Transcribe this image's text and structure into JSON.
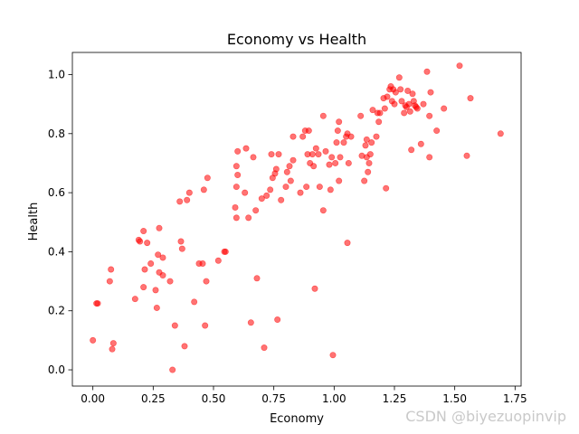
{
  "chart_data": {
    "type": "scatter",
    "title": "Economy vs Health",
    "xlabel": "Economy",
    "ylabel": "Health",
    "xlim": [
      -0.085,
      1.775
    ],
    "ylim": [
      -0.055,
      1.075
    ],
    "xticks": [
      0.0,
      0.25,
      0.5,
      0.75,
      1.0,
      1.25,
      1.5,
      1.75
    ],
    "xtick_labels": [
      "0.00",
      "0.25",
      "0.50",
      "0.75",
      "1.00",
      "1.25",
      "1.50",
      "1.75"
    ],
    "yticks": [
      0.0,
      0.2,
      0.4,
      0.6,
      0.8,
      1.0
    ],
    "ytick_labels": [
      "0.0",
      "0.2",
      "0.4",
      "0.6",
      "0.8",
      "1.0"
    ],
    "grid": false,
    "legend": "none",
    "marker_color": "#ff0000",
    "marker_alpha": 0.55,
    "points": [
      [
        0.0,
        0.1
      ],
      [
        0.015,
        0.225
      ],
      [
        0.02,
        0.225
      ],
      [
        0.07,
        0.3
      ],
      [
        0.075,
        0.34
      ],
      [
        0.08,
        0.07
      ],
      [
        0.085,
        0.09
      ],
      [
        0.175,
        0.24
      ],
      [
        0.19,
        0.44
      ],
      [
        0.195,
        0.435
      ],
      [
        0.21,
        0.47
      ],
      [
        0.21,
        0.28
      ],
      [
        0.215,
        0.34
      ],
      [
        0.225,
        0.43
      ],
      [
        0.24,
        0.36
      ],
      [
        0.26,
        0.27
      ],
      [
        0.265,
        0.21
      ],
      [
        0.27,
        0.39
      ],
      [
        0.275,
        0.48
      ],
      [
        0.275,
        0.33
      ],
      [
        0.29,
        0.38
      ],
      [
        0.29,
        0.32
      ],
      [
        0.32,
        0.3
      ],
      [
        0.33,
        0.0
      ],
      [
        0.34,
        0.15
      ],
      [
        0.36,
        0.57
      ],
      [
        0.365,
        0.435
      ],
      [
        0.37,
        0.41
      ],
      [
        0.38,
        0.08
      ],
      [
        0.39,
        0.575
      ],
      [
        0.4,
        0.6
      ],
      [
        0.42,
        0.23
      ],
      [
        0.44,
        0.36
      ],
      [
        0.455,
        0.36
      ],
      [
        0.46,
        0.61
      ],
      [
        0.465,
        0.15
      ],
      [
        0.47,
        0.3
      ],
      [
        0.475,
        0.65
      ],
      [
        0.52,
        0.37
      ],
      [
        0.545,
        0.4
      ],
      [
        0.55,
        0.4
      ],
      [
        0.59,
        0.55
      ],
      [
        0.595,
        0.515
      ],
      [
        0.595,
        0.62
      ],
      [
        0.595,
        0.69
      ],
      [
        0.6,
        0.74
      ],
      [
        0.6,
        0.66
      ],
      [
        0.63,
        0.6
      ],
      [
        0.635,
        0.75
      ],
      [
        0.645,
        0.515
      ],
      [
        0.655,
        0.16
      ],
      [
        0.665,
        0.72
      ],
      [
        0.675,
        0.54
      ],
      [
        0.68,
        0.31
      ],
      [
        0.7,
        0.58
      ],
      [
        0.71,
        0.075
      ],
      [
        0.72,
        0.59
      ],
      [
        0.735,
        0.61
      ],
      [
        0.74,
        0.73
      ],
      [
        0.745,
        0.65
      ],
      [
        0.755,
        0.665
      ],
      [
        0.76,
        0.68
      ],
      [
        0.765,
        0.17
      ],
      [
        0.77,
        0.73
      ],
      [
        0.78,
        0.575
      ],
      [
        0.8,
        0.62
      ],
      [
        0.805,
        0.67
      ],
      [
        0.815,
        0.69
      ],
      [
        0.82,
        0.64
      ],
      [
        0.83,
        0.71
      ],
      [
        0.83,
        0.79
      ],
      [
        0.86,
        0.6
      ],
      [
        0.87,
        0.79
      ],
      [
        0.88,
        0.81
      ],
      [
        0.885,
        0.62
      ],
      [
        0.89,
        0.73
      ],
      [
        0.895,
        0.81
      ],
      [
        0.9,
        0.7
      ],
      [
        0.91,
        0.73
      ],
      [
        0.915,
        0.69
      ],
      [
        0.92,
        0.275
      ],
      [
        0.925,
        0.75
      ],
      [
        0.935,
        0.73
      ],
      [
        0.94,
        0.62
      ],
      [
        0.955,
        0.54
      ],
      [
        0.955,
        0.86
      ],
      [
        0.965,
        0.74
      ],
      [
        0.98,
        0.695
      ],
      [
        0.985,
        0.61
      ],
      [
        0.99,
        0.72
      ],
      [
        0.995,
        0.05
      ],
      [
        1.005,
        0.7
      ],
      [
        1.01,
        0.77
      ],
      [
        1.015,
        0.81
      ],
      [
        1.02,
        0.64
      ],
      [
        1.02,
        0.84
      ],
      [
        1.025,
        0.72
      ],
      [
        1.04,
        0.77
      ],
      [
        1.05,
        0.79
      ],
      [
        1.055,
        0.43
      ],
      [
        1.055,
        0.8
      ],
      [
        1.06,
        0.7
      ],
      [
        1.07,
        0.79
      ],
      [
        1.11,
        0.86
      ],
      [
        1.115,
        0.725
      ],
      [
        1.125,
        0.64
      ],
      [
        1.13,
        0.76
      ],
      [
        1.135,
        0.78
      ],
      [
        1.135,
        0.72
      ],
      [
        1.14,
        0.67
      ],
      [
        1.145,
        0.7
      ],
      [
        1.15,
        0.73
      ],
      [
        1.155,
        0.77
      ],
      [
        1.16,
        0.88
      ],
      [
        1.175,
        0.79
      ],
      [
        1.18,
        0.87
      ],
      [
        1.185,
        0.84
      ],
      [
        1.19,
        0.87
      ],
      [
        1.205,
        0.92
      ],
      [
        1.21,
        0.885
      ],
      [
        1.215,
        0.615
      ],
      [
        1.22,
        0.925
      ],
      [
        1.23,
        0.95
      ],
      [
        1.235,
        0.96
      ],
      [
        1.24,
        0.91
      ],
      [
        1.245,
        0.95
      ],
      [
        1.25,
        0.9
      ],
      [
        1.255,
        0.94
      ],
      [
        1.27,
        0.99
      ],
      [
        1.275,
        0.95
      ],
      [
        1.28,
        0.91
      ],
      [
        1.29,
        0.87
      ],
      [
        1.295,
        0.895
      ],
      [
        1.3,
        0.89
      ],
      [
        1.305,
        0.945
      ],
      [
        1.31,
        0.9
      ],
      [
        1.315,
        0.875
      ],
      [
        1.32,
        0.745
      ],
      [
        1.325,
        0.935
      ],
      [
        1.33,
        0.91
      ],
      [
        1.335,
        0.895
      ],
      [
        1.34,
        0.89
      ],
      [
        1.345,
        0.885
      ],
      [
        1.36,
        0.765
      ],
      [
        1.37,
        0.9
      ],
      [
        1.385,
        1.01
      ],
      [
        1.395,
        0.72
      ],
      [
        1.395,
        0.86
      ],
      [
        1.4,
        0.94
      ],
      [
        1.425,
        0.81
      ],
      [
        1.455,
        0.885
      ],
      [
        1.52,
        1.03
      ],
      [
        1.55,
        0.725
      ],
      [
        1.565,
        0.92
      ],
      [
        1.69,
        0.8
      ]
    ]
  },
  "watermark": "CSDN @biyezuopinvip"
}
